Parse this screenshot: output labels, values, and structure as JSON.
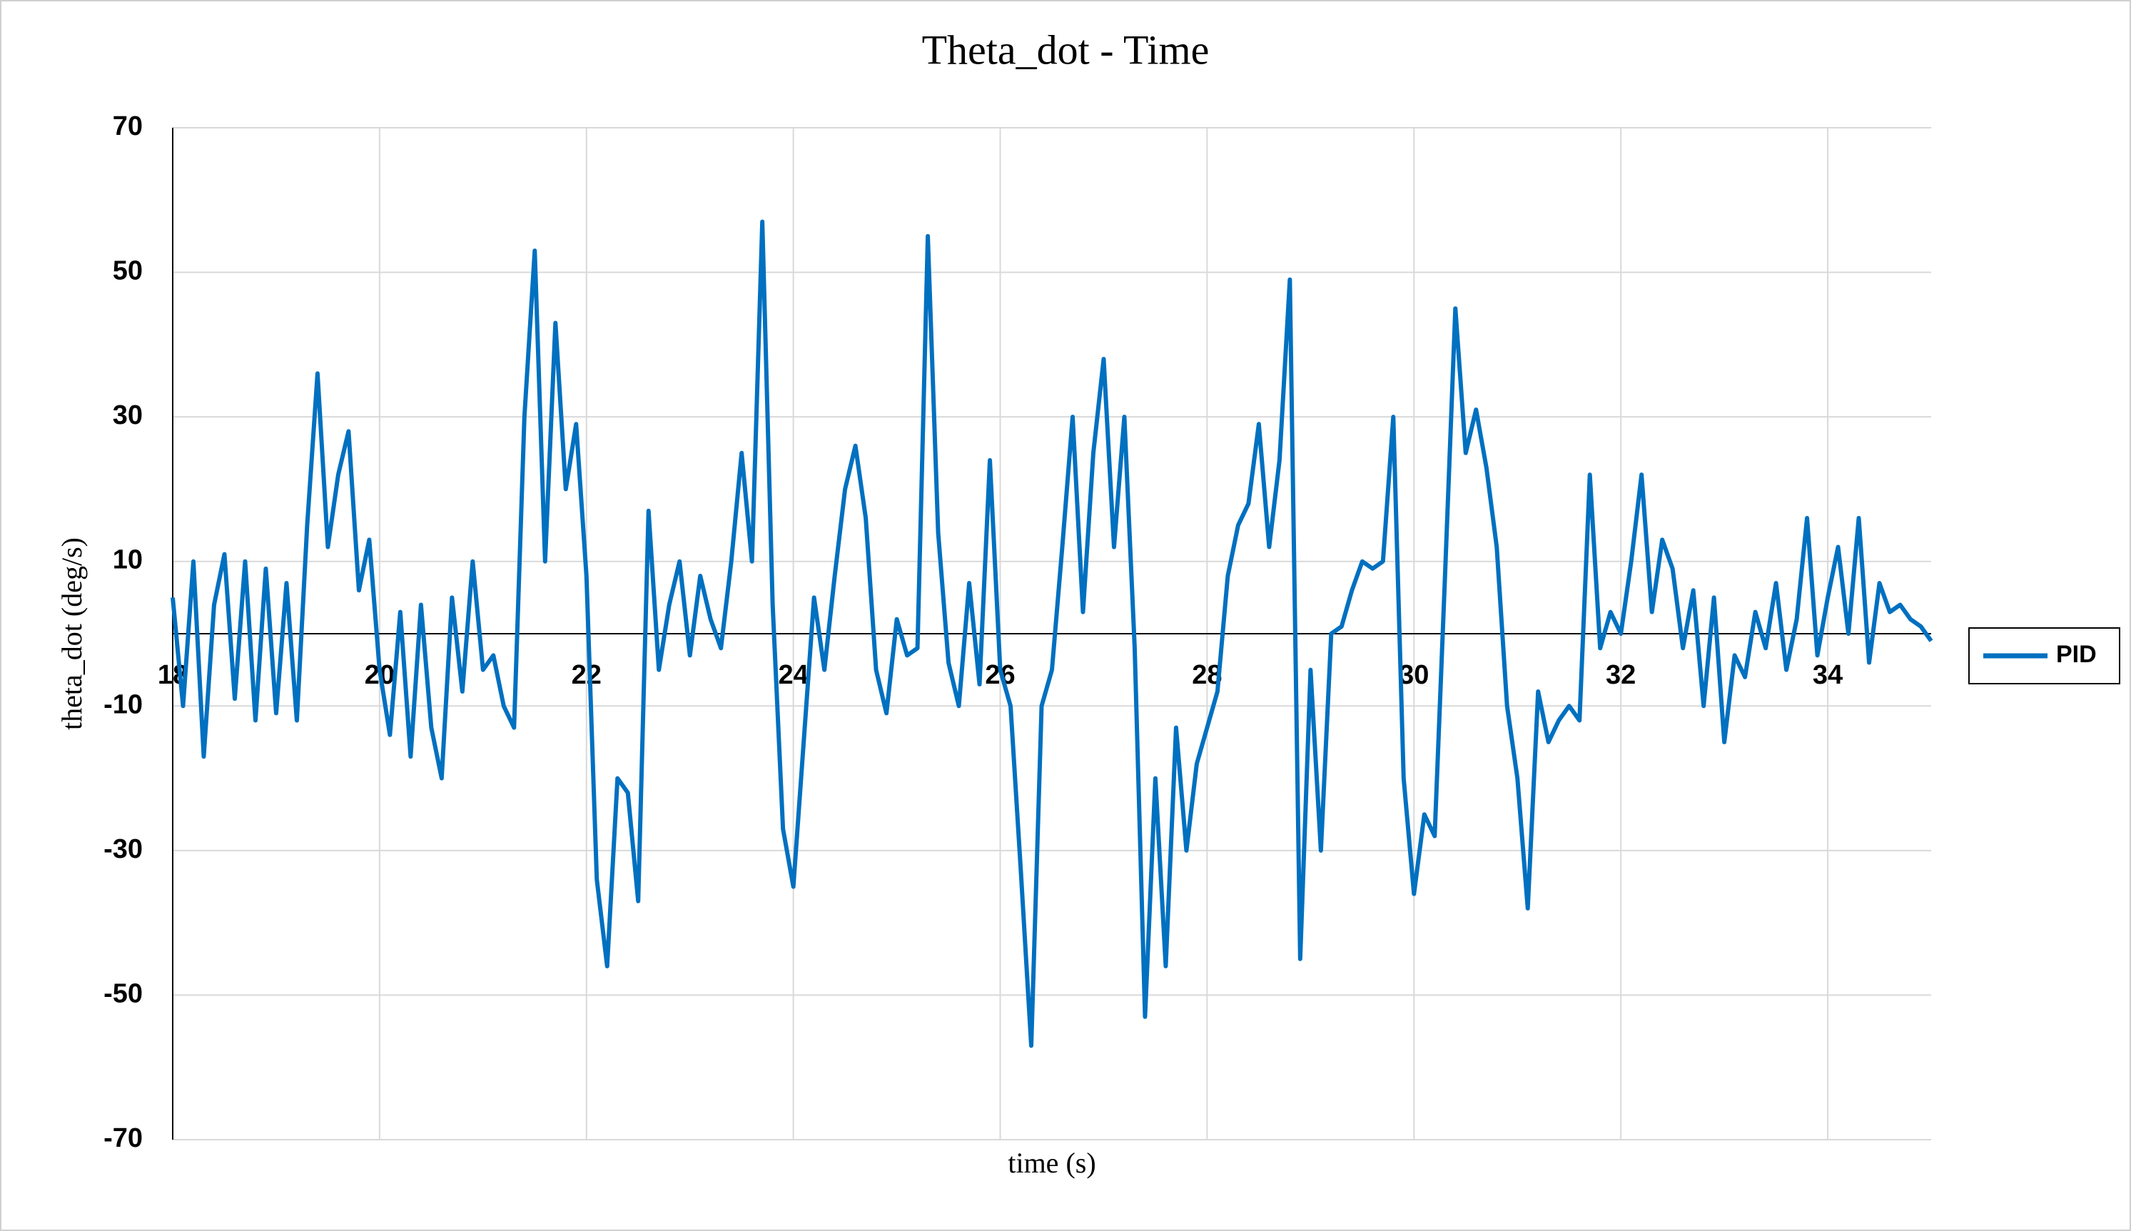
{
  "chart_data": {
    "type": "line",
    "title": "Theta_dot - Time",
    "x_label": "time (s)",
    "y_label": "theta_dot (deg/s)",
    "xlim": [
      18,
      35
    ],
    "ylim": [
      -70,
      70
    ],
    "xticks": [
      18,
      20,
      22,
      24,
      26,
      28,
      30,
      32,
      34
    ],
    "yticks": [
      -70,
      -50,
      -30,
      -10,
      10,
      30,
      50,
      70
    ],
    "grid": true,
    "legend": "right",
    "x": [
      18.0,
      18.1,
      18.2,
      18.3,
      18.4,
      18.5,
      18.6,
      18.7,
      18.8,
      18.9,
      19.0,
      19.1,
      19.2,
      19.3,
      19.4,
      19.5,
      19.6,
      19.7,
      19.8,
      19.9,
      20.0,
      20.1,
      20.2,
      20.3,
      20.4,
      20.5,
      20.6,
      20.7,
      20.8,
      20.9,
      21.0,
      21.1,
      21.2,
      21.3,
      21.4,
      21.5,
      21.6,
      21.7,
      21.8,
      21.9,
      22.0,
      22.1,
      22.2,
      22.3,
      22.4,
      22.5,
      22.6,
      22.7,
      22.8,
      22.9,
      23.0,
      23.1,
      23.2,
      23.3,
      23.4,
      23.5,
      23.6,
      23.7,
      23.8,
      23.9,
      24.0,
      24.1,
      24.2,
      24.3,
      24.4,
      24.5,
      24.6,
      24.7,
      24.8,
      24.9,
      25.0,
      25.1,
      25.2,
      25.3,
      25.4,
      25.5,
      25.6,
      25.7,
      25.8,
      25.9,
      26.0,
      26.1,
      26.2,
      26.3,
      26.4,
      26.5,
      26.6,
      26.7,
      26.8,
      26.9,
      27.0,
      27.1,
      27.2,
      27.3,
      27.4,
      27.5,
      27.6,
      27.7,
      27.8,
      27.9,
      28.0,
      28.1,
      28.2,
      28.3,
      28.4,
      28.5,
      28.6,
      28.7,
      28.8,
      28.9,
      29.0,
      29.1,
      29.2,
      29.3,
      29.4,
      29.5,
      29.6,
      29.7,
      29.8,
      29.9,
      30.0,
      30.1,
      30.2,
      30.3,
      30.4,
      30.5,
      30.6,
      30.7,
      30.8,
      30.9,
      31.0,
      31.1,
      31.2,
      31.3,
      31.4,
      31.5,
      31.6,
      31.7,
      31.8,
      31.9,
      32.0,
      32.1,
      32.2,
      32.3,
      32.4,
      32.5,
      32.6,
      32.7,
      32.8,
      32.9,
      33.0,
      33.1,
      33.2,
      33.3,
      33.4,
      33.5,
      33.6,
      33.7,
      33.8,
      33.9,
      34.0,
      34.1,
      34.2,
      34.3,
      34.4,
      34.5,
      34.6,
      34.7,
      34.8,
      34.9,
      35.0
    ],
    "series": [
      {
        "name": "PID",
        "color": "#0070c0",
        "values": [
          5,
          -10,
          10,
          -17,
          4,
          11,
          -9,
          10,
          -12,
          9,
          -11,
          7,
          -12,
          15,
          36,
          12,
          22,
          28,
          6,
          13,
          -5,
          -14,
          3,
          -17,
          4,
          -13,
          -20,
          5,
          -8,
          10,
          -5,
          -3,
          -10,
          -13,
          30,
          53,
          10,
          43,
          20,
          29,
          8,
          -34,
          -46,
          -20,
          -22,
          -37,
          17,
          -5,
          4,
          10,
          -3,
          8,
          2,
          -2,
          10,
          25,
          10,
          57,
          4,
          -27,
          -35,
          -15,
          5,
          -5,
          8,
          20,
          26,
          16,
          -5,
          -11,
          2,
          -3,
          -2,
          55,
          14,
          -4,
          -10,
          7,
          -7,
          24,
          -5,
          -10,
          -33,
          -57,
          -10,
          -5,
          12,
          30,
          3,
          25,
          38,
          12,
          30,
          -2,
          -53,
          -20,
          -46,
          -13,
          -30,
          -18,
          -13,
          -8,
          8,
          15,
          18,
          29,
          12,
          24,
          49,
          -45,
          -5,
          -30,
          0,
          1,
          6,
          10,
          9,
          10,
          30,
          -20,
          -36,
          -25,
          -28,
          8,
          45,
          25,
          31,
          23,
          12,
          -10,
          -20,
          -38,
          -8,
          -15,
          -12,
          -10,
          -12,
          22,
          -2,
          3,
          0,
          10,
          22,
          3,
          13,
          9,
          -2,
          6,
          -10,
          5,
          -15,
          -3,
          -6,
          3,
          -2,
          7,
          -5,
          2,
          16,
          -3,
          5,
          12,
          0,
          16,
          -4,
          7,
          3,
          4,
          2,
          1,
          -1
        ]
      }
    ]
  }
}
